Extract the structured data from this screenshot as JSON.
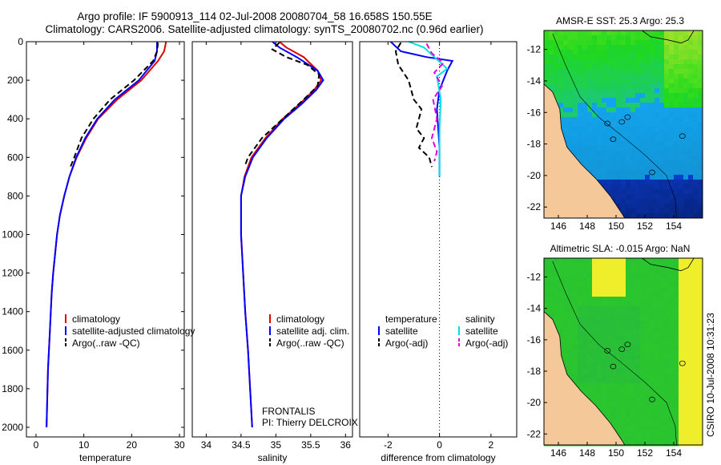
{
  "header": {
    "title_line1": "Argo profile: IF 5900913_114 02-Jul-2008 20080704_58 16.658S 150.55E",
    "title_line2": "Climatology: CARS2006. Satellite-adjusted climatology: synTS_20080702.nc (0.96d earlier)"
  },
  "footer": {
    "stamp": "CSIRO 10-Jul-2008 10:31:23"
  },
  "project": {
    "name": "FRONTALIS",
    "pi": "PI: Thierry DELCROIX"
  },
  "colors": {
    "climatology": "#e00000",
    "satellite": "#0000ff",
    "argo": "#000000",
    "sal_satellite": "#00e0e0",
    "sal_argo": "#e000e0",
    "land": "#f5c89a"
  },
  "chart_data": [
    {
      "type": "line",
      "xlabel": "temperature",
      "xlim": [
        -2,
        31
      ],
      "ylim": [
        0,
        2050
      ],
      "y_reversed": true,
      "xticks": [
        0,
        10,
        20,
        30
      ],
      "yticks": [
        0,
        200,
        400,
        600,
        800,
        1000,
        1200,
        1400,
        1600,
        1800,
        2000
      ],
      "legend": [
        "climatology",
        "satellite-adjusted climatology",
        "Argo(..raw -QC)"
      ],
      "series": [
        {
          "name": "climatology",
          "color": "#e00000",
          "dash": "",
          "points": [
            [
              27.2,
              0
            ],
            [
              26.8,
              50
            ],
            [
              25.5,
              100
            ],
            [
              22,
              200
            ],
            [
              17,
              300
            ],
            [
              13,
              400
            ],
            [
              10.5,
              500
            ],
            [
              8.5,
              600
            ],
            [
              7,
              700
            ],
            [
              5.9,
              800
            ],
            [
              5,
              900
            ],
            [
              4.4,
              1000
            ],
            [
              4,
              1100
            ],
            [
              3.6,
              1200
            ],
            [
              3.3,
              1300
            ],
            [
              3.1,
              1400
            ],
            [
              2.9,
              1500
            ],
            [
              2.7,
              1600
            ],
            [
              2.5,
              1700
            ],
            [
              2.4,
              1800
            ],
            [
              2.3,
              1900
            ],
            [
              2.2,
              2000
            ]
          ]
        },
        {
          "name": "satellite-adjusted climatology",
          "color": "#0000ff",
          "dash": "",
          "points": [
            [
              25.3,
              0
            ],
            [
              25.3,
              50
            ],
            [
              24.8,
              100
            ],
            [
              21.5,
              200
            ],
            [
              16.5,
              300
            ],
            [
              12.8,
              400
            ],
            [
              10.3,
              500
            ],
            [
              8.4,
              600
            ],
            [
              7,
              700
            ],
            [
              5.9,
              800
            ],
            [
              5,
              900
            ],
            [
              4.4,
              1000
            ],
            [
              4,
              1100
            ],
            [
              3.6,
              1200
            ],
            [
              3.3,
              1300
            ],
            [
              3.1,
              1400
            ],
            [
              2.9,
              1500
            ],
            [
              2.7,
              1600
            ],
            [
              2.5,
              1700
            ],
            [
              2.4,
              1800
            ],
            [
              2.3,
              1900
            ],
            [
              2.2,
              2000
            ]
          ]
        },
        {
          "name": "Argo(..raw -QC)",
          "color": "#000000",
          "dash": "7,4",
          "points": [
            [
              25.5,
              5
            ],
            [
              25.3,
              50
            ],
            [
              24.5,
              100
            ],
            [
              20.5,
              200
            ],
            [
              15.5,
              300
            ],
            [
              12,
              400
            ],
            [
              9.5,
              500
            ],
            [
              8,
              600
            ],
            [
              7.2,
              650
            ]
          ]
        }
      ]
    },
    {
      "type": "line",
      "xlabel": "salinity",
      "xlim": [
        33.8,
        36.1
      ],
      "ylim": [
        0,
        2050
      ],
      "y_reversed": true,
      "xticks": [
        34,
        34.5,
        35,
        35.5,
        36
      ],
      "yticks": [],
      "legend": [
        "climatology",
        "satellite adj. clim.",
        "Argo(..raw -QC)"
      ],
      "series": [
        {
          "name": "climatology",
          "color": "#e00000",
          "dash": "",
          "points": [
            [
              35.05,
              0
            ],
            [
              35.15,
              30
            ],
            [
              35.4,
              80
            ],
            [
              35.6,
              150
            ],
            [
              35.65,
              200
            ],
            [
              35.55,
              250
            ],
            [
              35.35,
              320
            ],
            [
              35.1,
              400
            ],
            [
              34.85,
              500
            ],
            [
              34.65,
              600
            ],
            [
              34.55,
              700
            ],
            [
              34.5,
              800
            ],
            [
              34.5,
              1000
            ],
            [
              34.53,
              1200
            ],
            [
              34.56,
              1400
            ],
            [
              34.6,
              1600
            ],
            [
              34.63,
              1800
            ],
            [
              34.66,
              2000
            ]
          ]
        },
        {
          "name": "satellite adj. clim.",
          "color": "#0000ff",
          "dash": "",
          "points": [
            [
              34.95,
              0
            ],
            [
              35.05,
              30
            ],
            [
              35.3,
              80
            ],
            [
              35.6,
              150
            ],
            [
              35.68,
              200
            ],
            [
              35.58,
              250
            ],
            [
              35.38,
              320
            ],
            [
              35.12,
              400
            ],
            [
              34.87,
              500
            ],
            [
              34.67,
              600
            ],
            [
              34.56,
              700
            ],
            [
              34.5,
              800
            ],
            [
              34.5,
              1000
            ],
            [
              34.53,
              1200
            ],
            [
              34.56,
              1400
            ],
            [
              34.6,
              1600
            ],
            [
              34.63,
              1800
            ],
            [
              34.66,
              2000
            ]
          ]
        },
        {
          "name": "Argo(..raw -QC)",
          "color": "#000000",
          "dash": "7,4",
          "points": [
            [
              35.05,
              5
            ],
            [
              34.95,
              40
            ],
            [
              35.15,
              80
            ],
            [
              35.45,
              120
            ],
            [
              35.62,
              170
            ],
            [
              35.6,
              230
            ],
            [
              35.4,
              300
            ],
            [
              35.1,
              400
            ],
            [
              34.8,
              500
            ],
            [
              34.6,
              600
            ],
            [
              34.55,
              650
            ]
          ]
        }
      ]
    },
    {
      "type": "line",
      "xlabel": "difference from climatology",
      "xlim": [
        -3.1,
        3.0
      ],
      "ylim": [
        0,
        2050
      ],
      "y_reversed": true,
      "xticks": [
        -2,
        0,
        2
      ],
      "yticks": [],
      "zero_line": true,
      "legend_titles": [
        "temperature",
        "salinity"
      ],
      "legend": [
        "satellite",
        "Argo(-adj)",
        "satellite",
        "Argo(-adj)"
      ],
      "series": [
        {
          "name": "satellite",
          "color": "#0000ff",
          "dash": "",
          "points": [
            [
              -1.9,
              0
            ],
            [
              -1.5,
              50
            ],
            [
              -0.5,
              80
            ],
            [
              0.5,
              100
            ],
            [
              0.3,
              150
            ],
            [
              0,
              250
            ],
            [
              -0.1,
              350
            ],
            [
              -0.05,
              450
            ],
            [
              0,
              550
            ],
            [
              0,
              700
            ]
          ]
        },
        {
          "name": "Argo(-adj)",
          "color": "#000000",
          "dash": "7,4",
          "points": [
            [
              -1.5,
              5
            ],
            [
              -1.7,
              50
            ],
            [
              -1.6,
              120
            ],
            [
              -1.2,
              200
            ],
            [
              -1.0,
              300
            ],
            [
              -0.7,
              350
            ],
            [
              -0.9,
              450
            ],
            [
              -0.6,
              500
            ],
            [
              -0.8,
              550
            ],
            [
              -0.4,
              600
            ],
            [
              -0.3,
              650
            ]
          ]
        },
        {
          "name": "satellite",
          "color": "#00e0e0",
          "dash": "",
          "points": [
            [
              -1.2,
              0
            ],
            [
              -0.6,
              30
            ],
            [
              -0.2,
              80
            ],
            [
              0.3,
              140
            ],
            [
              -0.1,
              180
            ],
            [
              0.05,
              300
            ],
            [
              0,
              450
            ],
            [
              0,
              600
            ],
            [
              0,
              700
            ]
          ]
        },
        {
          "name": "Argo(-adj)",
          "color": "#e000e0",
          "dash": "7,4",
          "points": [
            [
              -0.5,
              10
            ],
            [
              -0.3,
              60
            ],
            [
              0.15,
              110
            ],
            [
              -0.2,
              160
            ],
            [
              0.1,
              230
            ],
            [
              -0.25,
              300
            ],
            [
              -0.1,
              400
            ],
            [
              -0.3,
              500
            ],
            [
              -0.1,
              570
            ],
            [
              -0.2,
              620
            ]
          ]
        }
      ]
    },
    {
      "type": "heatmap",
      "title": "AMSR-E SST: 25.3 Argo: 25.3",
      "xlim": [
        145,
        156
      ],
      "ylim": [
        -22.7,
        -10.8
      ],
      "xticks": [
        146,
        148,
        150,
        152,
        154
      ],
      "yticks": [
        -12,
        -14,
        -16,
        -18,
        -20,
        -22
      ],
      "colormap": "sst"
    },
    {
      "type": "heatmap",
      "title": "Altimetric SLA: -0.015 Argo: NaN",
      "xlim": [
        145,
        156
      ],
      "ylim": [
        -22.7,
        -10.8
      ],
      "xticks": [
        146,
        148,
        150,
        152,
        154
      ],
      "yticks": [
        -12,
        -14,
        -16,
        -18,
        -20,
        -22
      ],
      "colormap": "sla"
    }
  ]
}
